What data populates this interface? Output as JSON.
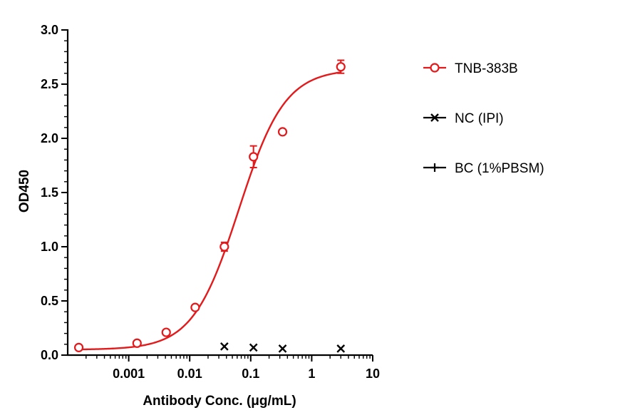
{
  "chart_data": {
    "type": "scatter",
    "xlabel": "Antibody Conc. (μg/mL)",
    "ylabel": "OD450",
    "xscale": "log",
    "xlim": [
      0.0001,
      10
    ],
    "ylim": [
      0,
      3.0
    ],
    "x_ticks": [
      "0.001",
      "0.01",
      "0.1",
      "1",
      "10"
    ],
    "y_ticks": [
      "0.0",
      "0.5",
      "1.0",
      "1.5",
      "2.0",
      "2.5",
      "3.0"
    ],
    "legend_position": "right",
    "series": [
      {
        "name": "TNB-383B",
        "color": "#e31a1c",
        "marker": "circle",
        "fit": "sigmoidal",
        "x": [
          0.000152,
          0.00137,
          0.00412,
          0.0123,
          0.037,
          0.111,
          0.333,
          3.0
        ],
        "y": [
          0.07,
          0.11,
          0.21,
          0.44,
          1.0,
          1.83,
          2.06,
          2.66
        ],
        "error": [
          0.02,
          0.02,
          0.02,
          0.02,
          0.04,
          0.1,
          0.02,
          0.06
        ]
      },
      {
        "name": "NC (IPI)",
        "color": "#000000",
        "marker": "x",
        "x": [
          0.037,
          0.111,
          0.333,
          3.0
        ],
        "y": [
          0.08,
          0.07,
          0.06,
          0.06
        ]
      },
      {
        "name": "BC (1%PBSM)",
        "color": "#000000",
        "marker": "plus",
        "x": [],
        "y": []
      }
    ]
  }
}
